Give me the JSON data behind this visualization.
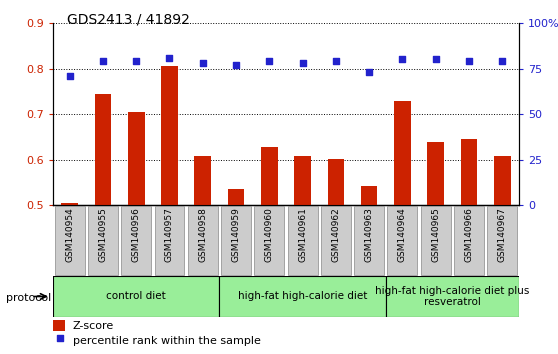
{
  "title": "GDS2413 / 41892",
  "samples": [
    "GSM140954",
    "GSM140955",
    "GSM140956",
    "GSM140957",
    "GSM140958",
    "GSM140959",
    "GSM140960",
    "GSM140961",
    "GSM140962",
    "GSM140963",
    "GSM140964",
    "GSM140965",
    "GSM140966",
    "GSM140967"
  ],
  "zscore": [
    0.505,
    0.745,
    0.705,
    0.805,
    0.608,
    0.535,
    0.628,
    0.608,
    0.602,
    0.542,
    0.728,
    0.64,
    0.645,
    0.608
  ],
  "percentile": [
    71,
    79,
    79,
    81,
    78,
    77,
    79,
    78,
    79,
    73,
    80,
    80,
    79,
    79
  ],
  "bar_color": "#cc2200",
  "dot_color": "#2222cc",
  "ylim_left": [
    0.5,
    0.9
  ],
  "ylim_right": [
    0,
    100
  ],
  "yticks_left": [
    0.5,
    0.6,
    0.7,
    0.8,
    0.9
  ],
  "yticks_right": [
    0,
    25,
    50,
    75,
    100
  ],
  "groups": [
    {
      "label": "control diet",
      "start": 0,
      "end": 4
    },
    {
      "label": "high-fat high-calorie diet",
      "start": 5,
      "end": 9
    },
    {
      "label": "high-fat high-calorie diet plus\nresveratrol",
      "start": 10,
      "end": 13
    }
  ],
  "group_color": "#99ee99",
  "tick_bg_color": "#cccccc",
  "protocol_label": "protocol",
  "legend_zscore": "Z-score",
  "legend_percentile": "percentile rank within the sample",
  "bar_width": 0.5
}
